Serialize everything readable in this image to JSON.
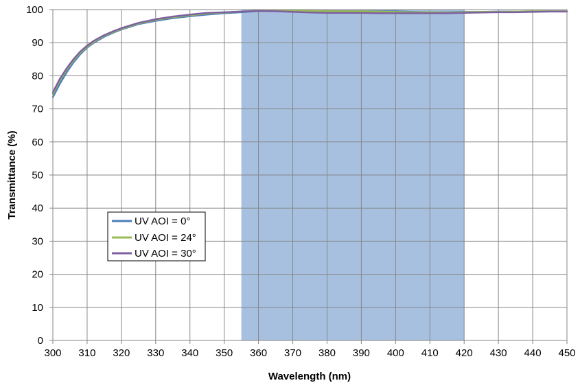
{
  "chart_data": {
    "type": "line",
    "title": "",
    "xlabel": "Wavelength (nm)",
    "ylabel": "Transmittance (%)",
    "xlim": [
      300,
      450
    ],
    "ylim": [
      0,
      100
    ],
    "xticks": [
      300,
      310,
      320,
      330,
      340,
      350,
      360,
      370,
      380,
      390,
      400,
      410,
      420,
      430,
      440,
      450
    ],
    "yticks": [
      0,
      10,
      20,
      30,
      40,
      50,
      60,
      70,
      80,
      90,
      100
    ],
    "grid": true,
    "legend_position": "lower-left",
    "highlight_band": {
      "x_start": 355,
      "x_end": 420,
      "color": "#a7c0e0"
    },
    "x": [
      300,
      302,
      304,
      306,
      308,
      310,
      312,
      315,
      318,
      320,
      325,
      330,
      335,
      340,
      345,
      350,
      355,
      360,
      365,
      370,
      375,
      380,
      385,
      390,
      395,
      400,
      405,
      410,
      415,
      420,
      425,
      430,
      435,
      440,
      445,
      450
    ],
    "series": [
      {
        "name": "UV AOI = 0°",
        "color": "#4a7ebb",
        "values": [
          73.5,
          77.5,
          81.0,
          84.0,
          86.5,
          88.5,
          90.0,
          91.8,
          93.2,
          94.0,
          95.6,
          96.6,
          97.4,
          98.0,
          98.5,
          98.9,
          99.2,
          99.6,
          99.6,
          99.6,
          99.5,
          99.5,
          99.5,
          99.5,
          99.5,
          99.5,
          99.3,
          99.2,
          99.2,
          99.3,
          99.3,
          99.4,
          99.4,
          99.5,
          99.5,
          99.5
        ]
      },
      {
        "name": "UV AOI = 24°",
        "color": "#98b954",
        "values": [
          74.5,
          78.5,
          81.8,
          84.6,
          87.0,
          88.8,
          90.3,
          92.1,
          93.4,
          94.2,
          95.8,
          96.9,
          97.7,
          98.3,
          98.8,
          99.1,
          99.4,
          99.7,
          99.8,
          99.7,
          99.6,
          99.5,
          99.5,
          99.5,
          99.4,
          99.3,
          99.2,
          99.2,
          99.1,
          99.2,
          99.3,
          99.3,
          99.4,
          99.5,
          99.5,
          99.5
        ]
      },
      {
        "name": "UV AOI = 30°",
        "color": "#7d60a0",
        "values": [
          75.0,
          79.0,
          82.2,
          85.0,
          87.3,
          89.1,
          90.6,
          92.3,
          93.6,
          94.4,
          96.0,
          97.1,
          97.9,
          98.5,
          99.0,
          99.2,
          99.4,
          99.6,
          99.5,
          99.3,
          99.1,
          99.0,
          99.0,
          99.0,
          98.9,
          98.9,
          98.9,
          98.9,
          98.9,
          99.0,
          99.1,
          99.2,
          99.2,
          99.3,
          99.4,
          99.4
        ]
      }
    ]
  }
}
